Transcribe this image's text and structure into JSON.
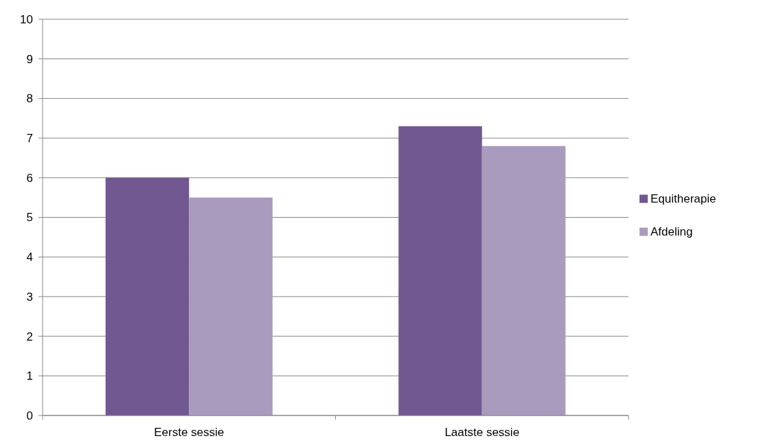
{
  "chart_data": {
    "type": "bar",
    "categories": [
      "Eerste sessie",
      "Laatste sessie"
    ],
    "series": [
      {
        "name": "Equitherapie",
        "color": "#715890",
        "values": [
          6,
          7.3
        ]
      },
      {
        "name": "Afdeling",
        "color": "#a99bbd",
        "values": [
          5.5,
          6.8
        ]
      }
    ],
    "ylim": [
      0,
      10
    ],
    "yticks": [
      0,
      1,
      2,
      3,
      4,
      5,
      6,
      7,
      8,
      9,
      10
    ],
    "grid": "y",
    "legend": "right"
  }
}
